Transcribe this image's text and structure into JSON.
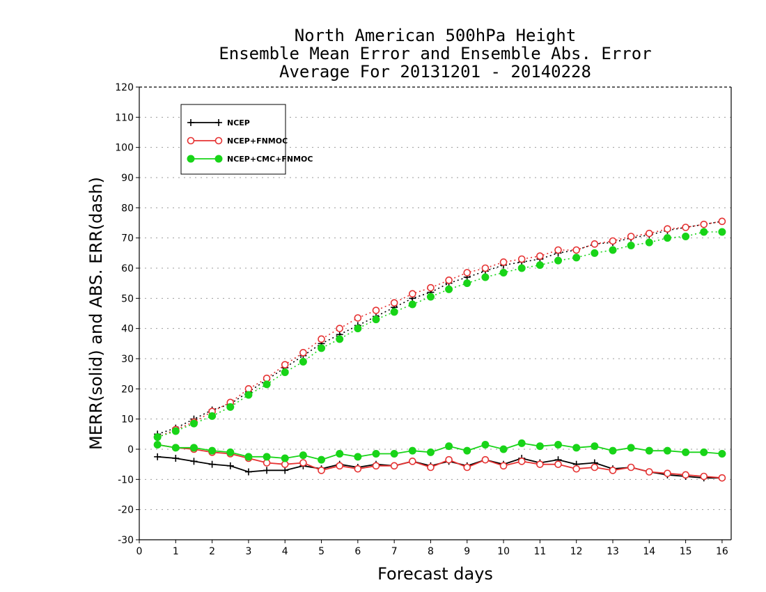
{
  "chart_data": {
    "type": "line",
    "title": [
      "North American 500hPa Height",
      "Ensemble Mean Error and Ensemble Abs. Error",
      "Average For 20131201 - 20140228"
    ],
    "xlabel": "Forecast days",
    "ylabel": "MERR(solid) and ABS. ERR(dash)",
    "xlim": [
      0,
      16.25
    ],
    "ylim": [
      -30,
      120
    ],
    "xticks": [
      0,
      1,
      2,
      3,
      4,
      5,
      6,
      7,
      8,
      9,
      10,
      11,
      12,
      13,
      14,
      15,
      16
    ],
    "yticks": [
      -30,
      -20,
      -10,
      0,
      10,
      20,
      30,
      40,
      50,
      60,
      70,
      80,
      90,
      100,
      110,
      120
    ],
    "grid": "horizontal dotted",
    "legend_position": "top-left",
    "x": [
      0.5,
      1,
      1.5,
      2,
      2.5,
      3,
      3.5,
      4,
      4.5,
      5,
      5.5,
      6,
      6.5,
      7,
      7.5,
      8,
      8.5,
      9,
      9.5,
      10,
      10.5,
      11,
      11.5,
      12,
      12.5,
      13,
      13.5,
      14,
      14.5,
      15,
      15.5,
      16
    ],
    "series": [
      {
        "name": "NCEP",
        "color": "#000000",
        "marker": "plus",
        "merr": [
          -2.5,
          -3,
          -4,
          -5,
          -5.5,
          -7.5,
          -7,
          -7,
          -5.5,
          -6.5,
          -5,
          -6,
          -5,
          -5.5,
          -4,
          -5.5,
          -4,
          -5.5,
          -3.5,
          -5,
          -3,
          -4.5,
          -3.5,
          -5,
          -4.5,
          -6.5,
          -6,
          -7.5,
          -8.5,
          -9,
          -9.5,
          -9.5
        ],
        "abs_err": [
          5,
          7,
          10,
          13,
          15,
          19,
          23,
          27,
          31,
          35,
          38,
          41,
          44,
          47,
          50,
          52,
          55,
          57,
          59,
          61,
          62,
          63,
          65,
          66,
          68,
          68.5,
          70,
          71,
          72.5,
          73.5,
          74.5,
          75.5
        ]
      },
      {
        "name": "NCEP+FNMOC",
        "color": "#e63232",
        "marker": "open-circle",
        "merr": [
          1.5,
          0.5,
          0,
          -1,
          -1.5,
          -3,
          -4.5,
          -5,
          -4.5,
          -7,
          -5.5,
          -6.5,
          -5.5,
          -5.5,
          -4,
          -6,
          -3.5,
          -6,
          -3.5,
          -5.5,
          -4,
          -5,
          -5,
          -6.5,
          -6,
          -7,
          -6,
          -7.5,
          -8,
          -8.5,
          -9,
          -9.5
        ],
        "abs_err": [
          4,
          6.5,
          9,
          12.5,
          15.5,
          20,
          23.5,
          28,
          32,
          36.5,
          40,
          43.5,
          46,
          48.5,
          51.5,
          53.5,
          56,
          58.5,
          60,
          62,
          63,
          64,
          66,
          66,
          68,
          69,
          70.5,
          71.5,
          73,
          73.5,
          74.5,
          75.5
        ]
      },
      {
        "name": "NCEP+CMC+FNMOC",
        "color": "#18d418",
        "marker": "filled-circle",
        "merr": [
          1.5,
          0.5,
          0.5,
          -0.5,
          -1,
          -2.5,
          -2.5,
          -3,
          -2,
          -3.5,
          -1.5,
          -2.5,
          -1.5,
          -1.5,
          -0.5,
          -1,
          1,
          -0.5,
          1.5,
          0,
          2,
          1,
          1.5,
          0.5,
          1,
          -0.5,
          0.5,
          -0.5,
          -0.5,
          -1,
          -1,
          -1.5
        ],
        "abs_err": [
          4,
          6,
          8.5,
          11,
          14,
          18,
          21.5,
          25.5,
          29,
          33.5,
          36.5,
          40,
          43,
          45.5,
          48,
          50.5,
          53,
          55,
          57,
          58.5,
          60,
          61,
          62.5,
          63.5,
          65,
          66,
          67.5,
          68.5,
          70,
          70.5,
          72,
          72
        ]
      }
    ]
  }
}
